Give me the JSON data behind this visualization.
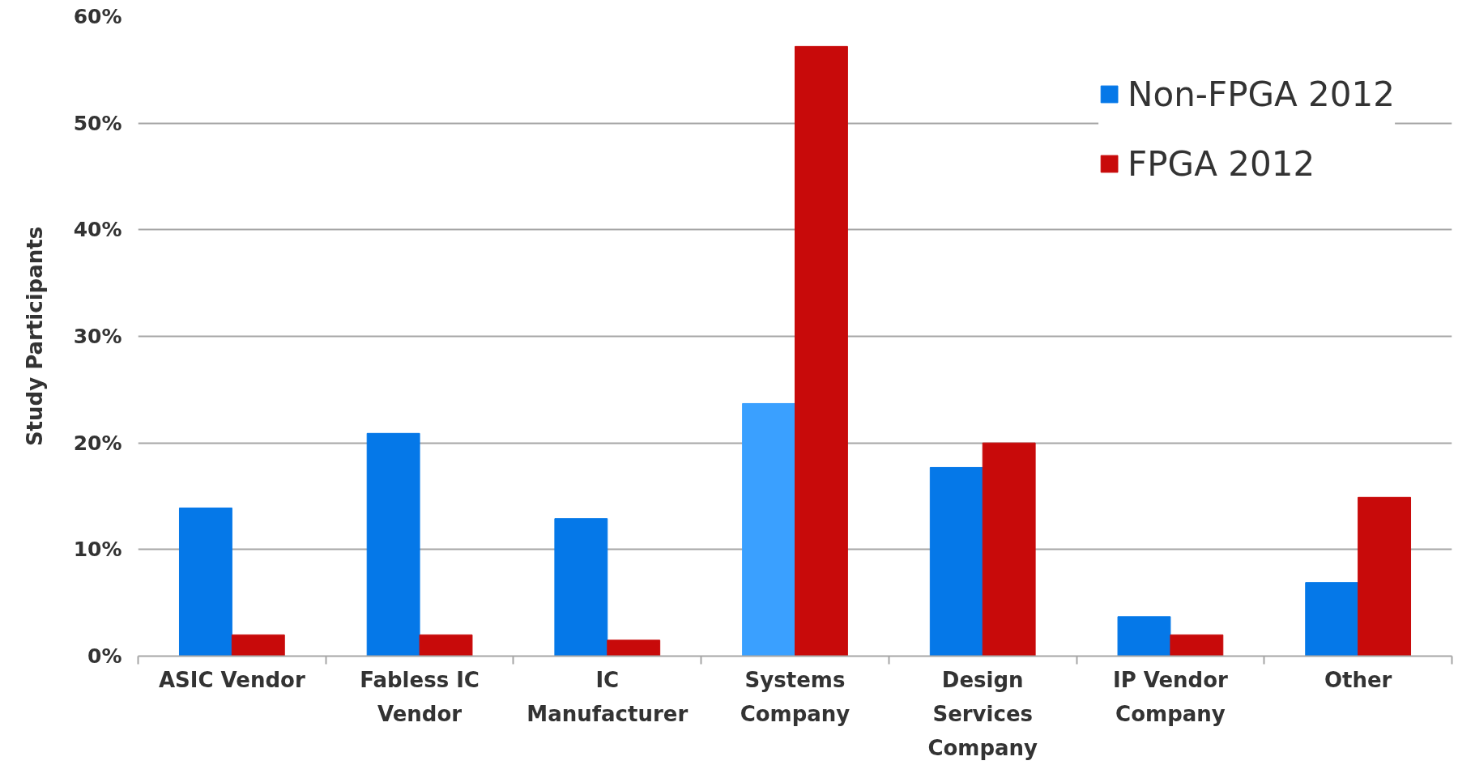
{
  "chart_data": {
    "type": "bar",
    "ylabel": "Study Participants",
    "categories": [
      "ASIC Vendor",
      "Fabless IC\nVendor",
      "IC\nManufacturer",
      "Systems\nCompany",
      "Design\nServices\nCompany",
      "IP Vendor\nCompany",
      "Other"
    ],
    "series": [
      {
        "name": "Non-FPGA 2012",
        "color": "#0578e8",
        "colors": [
          "#0578e8",
          "#0578e8",
          "#0578e8",
          "#3aa0ff",
          "#0578e8",
          "#0578e8",
          "#0578e8"
        ],
        "values": [
          13.9,
          20.9,
          12.9,
          23.7,
          17.7,
          3.7,
          6.9
        ]
      },
      {
        "name": "FPGA 2012",
        "color": "#c80a0a",
        "values": [
          2.0,
          2.0,
          1.5,
          57.2,
          20.0,
          2.0,
          14.9
        ]
      }
    ],
    "ylim": [
      0,
      60
    ],
    "yticks": [
      {
        "value": 0,
        "label": "0%"
      },
      {
        "value": 10,
        "label": "10%"
      },
      {
        "value": 20,
        "label": "20%"
      },
      {
        "value": 30,
        "label": "30%"
      },
      {
        "value": 40,
        "label": "40%"
      },
      {
        "value": 50,
        "label": "50%"
      },
      {
        "value": 60,
        "label": "60%"
      }
    ],
    "grid": "y",
    "legend": "top right"
  }
}
